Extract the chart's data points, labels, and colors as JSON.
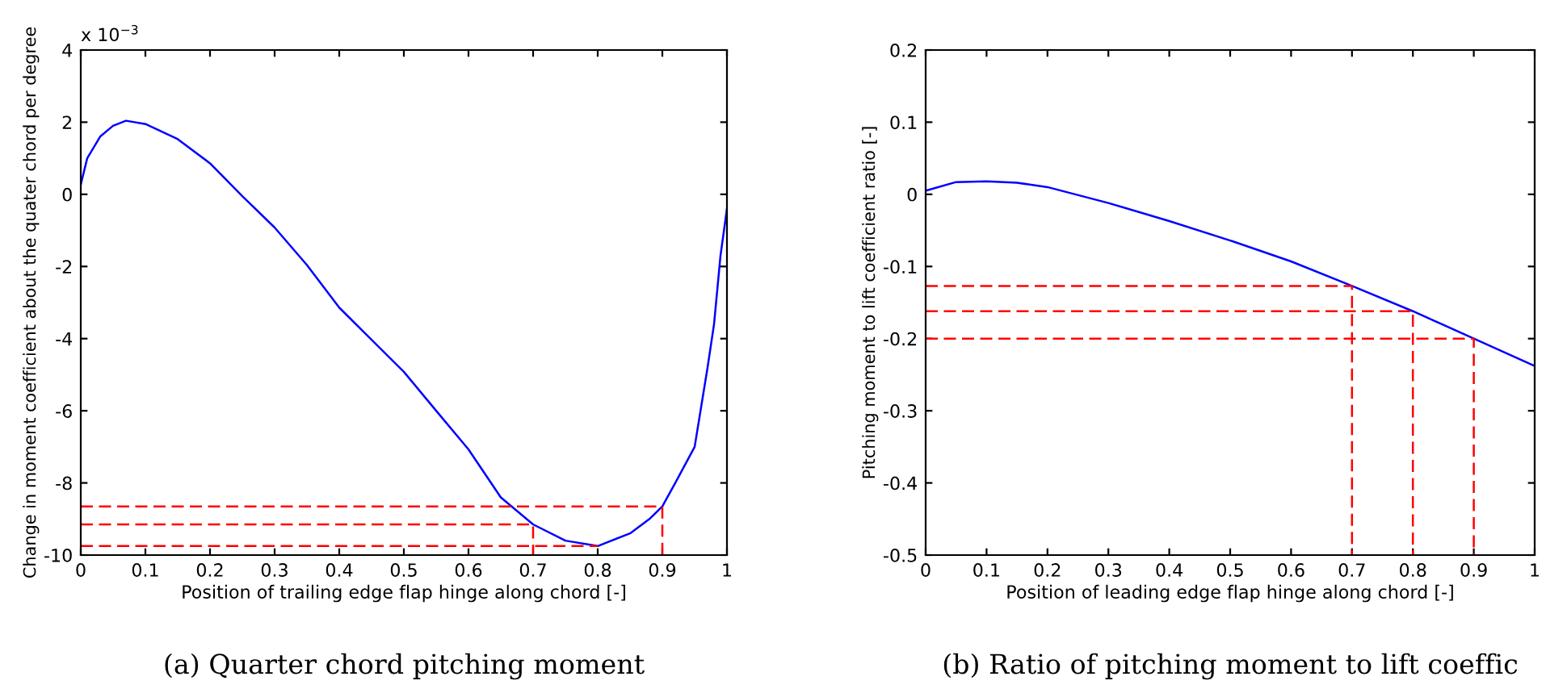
{
  "chart_data": [
    {
      "type": "line",
      "xlabel": "Position of trailing edge flap hinge along chord [-]",
      "ylabel": "Change in moment coefficient about the quater chord per degree",
      "annotations": [
        "x 10$^{−3}$",
        "(a) Quarter chord pitching moment"
      ],
      "xlim": [
        0,
        1
      ],
      "ylim": [
        -10,
        4
      ],
      "xticks": [
        0,
        0.1,
        0.2,
        0.3,
        0.4,
        0.5,
        0.6,
        0.7,
        0.8,
        0.9,
        1
      ],
      "yticks": [
        -10,
        -8,
        -6,
        -4,
        -2,
        0,
        2,
        4
      ],
      "grid": false,
      "series": [
        {
          "color": "#0000ff",
          "line_style": "solid",
          "x": [
            0,
            0.01,
            0.03,
            0.05,
            0.07,
            0.1,
            0.15,
            0.2,
            0.25,
            0.3,
            0.35,
            0.4,
            0.45,
            0.5,
            0.55,
            0.6,
            0.65,
            0.7,
            0.75,
            0.8,
            0.85,
            0.88,
            0.9,
            0.92,
            0.95,
            0.97,
            0.98,
            0.99,
            1
          ],
          "values": [
            0.27,
            1.0,
            1.6,
            1.9,
            2.04,
            1.95,
            1.53,
            0.86,
            -0.05,
            -0.92,
            -1.96,
            -3.14,
            -4.03,
            -4.92,
            -6.0,
            -7.07,
            -8.4,
            -9.15,
            -9.6,
            -9.75,
            -9.4,
            -9.0,
            -8.65,
            -8.0,
            -7.0,
            -4.8,
            -3.6,
            -1.7,
            -0.4
          ]
        },
        {
          "color": "#ff0000",
          "line_style": "dashed",
          "x": [
            0,
            0.9,
            0.9
          ],
          "values": [
            -8.65,
            -8.65,
            -10
          ]
        },
        {
          "color": "#ff0000",
          "line_style": "dashed",
          "x": [
            0,
            0.7,
            0.7
          ],
          "values": [
            -9.15,
            -9.15,
            -10
          ]
        },
        {
          "color": "#ff0000",
          "line_style": "dashed",
          "x": [
            0,
            0.8
          ],
          "values": [
            -9.75,
            -9.75
          ]
        }
      ]
    },
    {
      "type": "line",
      "xlabel": "Position of leading edge flap hinge along chord [-]",
      "ylabel": "Pitching moment to lift coefficient ratio [-]",
      "annotations": [
        "(b) Ratio of pitching moment to lift coeffic"
      ],
      "xlim": [
        0,
        1
      ],
      "ylim": [
        -0.5,
        0.2
      ],
      "xticks": [
        0,
        0.1,
        0.2,
        0.3,
        0.4,
        0.5,
        0.6,
        0.7,
        0.8,
        0.9,
        1
      ],
      "yticks": [
        -0.5,
        -0.4,
        -0.3,
        -0.2,
        -0.1,
        0,
        0.1,
        0.2
      ],
      "grid": false,
      "series": [
        {
          "color": "#0000ff",
          "line_style": "solid",
          "x": [
            0,
            0.05,
            0.1,
            0.15,
            0.2,
            0.3,
            0.4,
            0.5,
            0.6,
            0.7,
            0.8,
            0.9,
            1
          ],
          "values": [
            0.005,
            0.017,
            0.018,
            0.016,
            0.01,
            -0.012,
            -0.037,
            -0.064,
            -0.093,
            -0.127,
            -0.162,
            -0.2,
            -0.238
          ]
        },
        {
          "color": "#ff0000",
          "line_style": "dashed",
          "x": [
            0,
            0.7,
            0.7
          ],
          "values": [
            -0.127,
            -0.127,
            -0.5
          ]
        },
        {
          "color": "#ff0000",
          "line_style": "dashed",
          "x": [
            0,
            0.8,
            0.8
          ],
          "values": [
            -0.162,
            -0.162,
            -0.5
          ]
        },
        {
          "color": "#ff0000",
          "line_style": "dashed",
          "x": [
            0,
            0.9,
            0.9
          ],
          "values": [
            -0.2,
            -0.2,
            -0.5
          ]
        }
      ]
    }
  ]
}
